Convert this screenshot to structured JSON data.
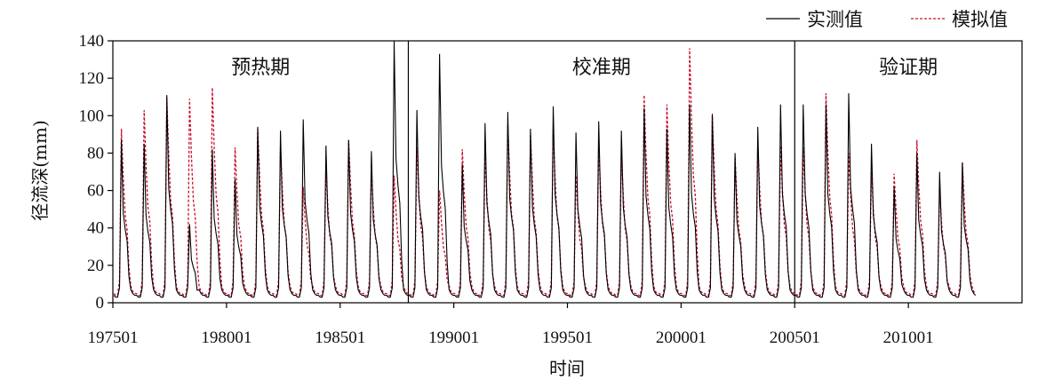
{
  "chart_data": {
    "type": "line",
    "ylabel": "径流深(mm)",
    "xlabel": "时间",
    "ylim": [
      0,
      140
    ],
    "y_ticks": [
      0,
      20,
      40,
      60,
      80,
      100,
      120,
      140
    ],
    "x_range": [
      "197501",
      "201412"
    ],
    "x_ticks": [
      "197501",
      "198001",
      "198501",
      "199001",
      "199501",
      "200001",
      "200501",
      "201001"
    ],
    "grid": false,
    "legend_position": "top-right",
    "periods": [
      {
        "label": "预热期",
        "start": "197501",
        "end": "198712"
      },
      {
        "label": "校准期",
        "start": "198801",
        "end": "200412"
      },
      {
        "label": "验证期",
        "start": "200501",
        "end": "201412"
      }
    ],
    "series": [
      {
        "name": "实测值",
        "color": "#000000",
        "style": "solid",
        "annual_peaks": [
          87,
          85,
          111,
          42,
          82,
          66,
          94,
          92,
          98,
          84,
          87,
          81,
          140,
          103,
          133,
          74,
          96,
          102,
          93,
          105,
          91,
          97,
          92,
          104,
          93,
          106,
          101,
          80,
          94,
          106,
          106,
          106,
          112,
          85,
          62,
          80,
          70,
          75
        ]
      },
      {
        "name": "模拟值",
        "color": "#c8102e",
        "style": "dashed",
        "annual_peaks": [
          93,
          103,
          110,
          109,
          115,
          83,
          93,
          84,
          62,
          72,
          87,
          71,
          68,
          83,
          60,
          82,
          79,
          95,
          90,
          93,
          68,
          84,
          79,
          111,
          106,
          136,
          100,
          78,
          85,
          84,
          83,
          112,
          80,
          70,
          69,
          87,
          60,
          75
        ]
      }
    ]
  }
}
